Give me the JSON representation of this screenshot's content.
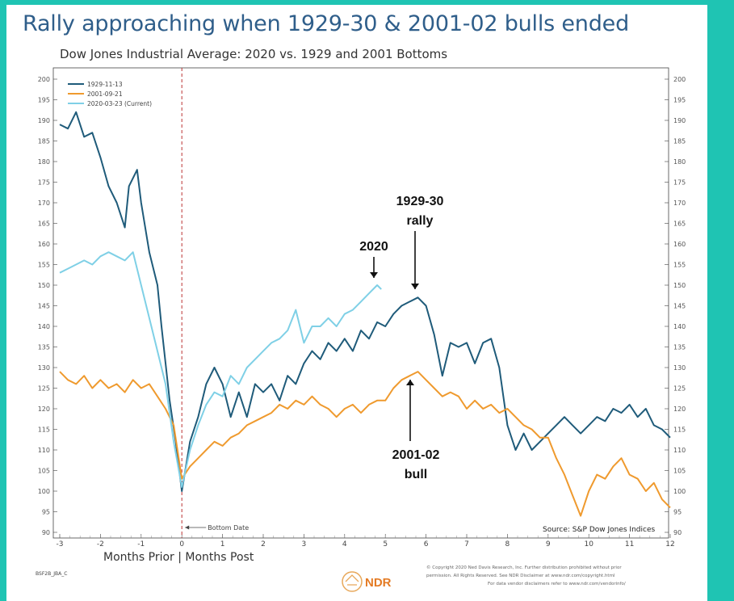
{
  "slide_title": "Rally approaching when 1929-30 & 2001-02 bulls ended",
  "chart_data": {
    "type": "line",
    "title": "Dow Jones Industrial Average: 2020 vs. 1929 and 2001 Bottoms",
    "xlabel": "Months Prior | Months Post",
    "ylabel": "",
    "xlim": [
      -3,
      12
    ],
    "ylim": [
      90,
      200
    ],
    "x_ticks": [
      "-3",
      "-2",
      "-1",
      "0",
      "1",
      "2",
      "3",
      "4",
      "5",
      "6",
      "7",
      "8",
      "9",
      "10",
      "11",
      "12"
    ],
    "y_ticks": [
      "90",
      "95",
      "100",
      "105",
      "110",
      "115",
      "120",
      "125",
      "130",
      "135",
      "140",
      "145",
      "150",
      "155",
      "160",
      "165",
      "170",
      "175",
      "180",
      "185",
      "190",
      "195",
      "200"
    ],
    "grid": false,
    "legend_position": "top-left",
    "vline": {
      "x": 0,
      "label": "Bottom Date"
    },
    "colors": {
      "s1929": "#1f5b7a",
      "s2001": "#ef9a2e",
      "s2020": "#7fd0e6"
    },
    "series": [
      {
        "name": "1929-11-13",
        "color": "#1f5b7a",
        "points": [
          [
            -3,
            189
          ],
          [
            -2.8,
            188
          ],
          [
            -2.6,
            192
          ],
          [
            -2.4,
            186
          ],
          [
            -2.2,
            187
          ],
          [
            -2,
            181
          ],
          [
            -1.8,
            174
          ],
          [
            -1.6,
            170
          ],
          [
            -1.4,
            164
          ],
          [
            -1.3,
            174
          ],
          [
            -1.1,
            178
          ],
          [
            -1,
            170
          ],
          [
            -0.8,
            158
          ],
          [
            -0.6,
            150
          ],
          [
            -0.5,
            140
          ],
          [
            -0.3,
            122
          ],
          [
            -0.15,
            112
          ],
          [
            0,
            100
          ],
          [
            0.2,
            112
          ],
          [
            0.4,
            118
          ],
          [
            0.6,
            126
          ],
          [
            0.8,
            130
          ],
          [
            1,
            126
          ],
          [
            1.2,
            118
          ],
          [
            1.4,
            124
          ],
          [
            1.6,
            118
          ],
          [
            1.8,
            126
          ],
          [
            2,
            124
          ],
          [
            2.2,
            126
          ],
          [
            2.4,
            122
          ],
          [
            2.6,
            128
          ],
          [
            2.8,
            126
          ],
          [
            3,
            131
          ],
          [
            3.2,
            134
          ],
          [
            3.4,
            132
          ],
          [
            3.6,
            136
          ],
          [
            3.8,
            134
          ],
          [
            4,
            137
          ],
          [
            4.2,
            134
          ],
          [
            4.4,
            139
          ],
          [
            4.6,
            137
          ],
          [
            4.8,
            141
          ],
          [
            5,
            140
          ],
          [
            5.2,
            143
          ],
          [
            5.4,
            145
          ],
          [
            5.6,
            146
          ],
          [
            5.8,
            147
          ],
          [
            6,
            145
          ],
          [
            6.2,
            138
          ],
          [
            6.4,
            128
          ],
          [
            6.6,
            136
          ],
          [
            6.8,
            135
          ],
          [
            7,
            136
          ],
          [
            7.2,
            131
          ],
          [
            7.4,
            136
          ],
          [
            7.6,
            137
          ],
          [
            7.8,
            130
          ],
          [
            8,
            116
          ],
          [
            8.2,
            110
          ],
          [
            8.4,
            114
          ],
          [
            8.6,
            110
          ],
          [
            8.8,
            112
          ],
          [
            9,
            114
          ],
          [
            9.2,
            116
          ],
          [
            9.4,
            118
          ],
          [
            9.6,
            116
          ],
          [
            9.8,
            114
          ],
          [
            10,
            116
          ],
          [
            10.2,
            118
          ],
          [
            10.4,
            117
          ],
          [
            10.6,
            120
          ],
          [
            10.8,
            119
          ],
          [
            11,
            121
          ],
          [
            11.2,
            118
          ],
          [
            11.4,
            120
          ],
          [
            11.6,
            116
          ],
          [
            11.8,
            115
          ],
          [
            12,
            113
          ]
        ]
      },
      {
        "name": "2001-09-21",
        "color": "#ef9a2e",
        "points": [
          [
            -3,
            129
          ],
          [
            -2.8,
            127
          ],
          [
            -2.6,
            126
          ],
          [
            -2.4,
            128
          ],
          [
            -2.2,
            125
          ],
          [
            -2,
            127
          ],
          [
            -1.8,
            125
          ],
          [
            -1.6,
            126
          ],
          [
            -1.4,
            124
          ],
          [
            -1.2,
            127
          ],
          [
            -1,
            125
          ],
          [
            -0.8,
            126
          ],
          [
            -0.6,
            123
          ],
          [
            -0.4,
            120
          ],
          [
            -0.2,
            116
          ],
          [
            0,
            103
          ],
          [
            0.2,
            106
          ],
          [
            0.4,
            108
          ],
          [
            0.6,
            110
          ],
          [
            0.8,
            112
          ],
          [
            1,
            111
          ],
          [
            1.2,
            113
          ],
          [
            1.4,
            114
          ],
          [
            1.6,
            116
          ],
          [
            1.8,
            117
          ],
          [
            2,
            118
          ],
          [
            2.2,
            119
          ],
          [
            2.4,
            121
          ],
          [
            2.6,
            120
          ],
          [
            2.8,
            122
          ],
          [
            3,
            121
          ],
          [
            3.2,
            123
          ],
          [
            3.4,
            121
          ],
          [
            3.6,
            120
          ],
          [
            3.8,
            118
          ],
          [
            4,
            120
          ],
          [
            4.2,
            121
          ],
          [
            4.4,
            119
          ],
          [
            4.6,
            121
          ],
          [
            4.8,
            122
          ],
          [
            5,
            122
          ],
          [
            5.2,
            125
          ],
          [
            5.4,
            127
          ],
          [
            5.6,
            128
          ],
          [
            5.8,
            129
          ],
          [
            6,
            127
          ],
          [
            6.2,
            125
          ],
          [
            6.4,
            123
          ],
          [
            6.6,
            124
          ],
          [
            6.8,
            123
          ],
          [
            7,
            120
          ],
          [
            7.2,
            122
          ],
          [
            7.4,
            120
          ],
          [
            7.6,
            121
          ],
          [
            7.8,
            119
          ],
          [
            8,
            120
          ],
          [
            8.2,
            118
          ],
          [
            8.4,
            116
          ],
          [
            8.6,
            115
          ],
          [
            8.8,
            113
          ],
          [
            9,
            113
          ],
          [
            9.2,
            108
          ],
          [
            9.4,
            104
          ],
          [
            9.6,
            99
          ],
          [
            9.8,
            94
          ],
          [
            10,
            100
          ],
          [
            10.2,
            104
          ],
          [
            10.4,
            103
          ],
          [
            10.6,
            106
          ],
          [
            10.8,
            108
          ],
          [
            11,
            104
          ],
          [
            11.2,
            103
          ],
          [
            11.4,
            100
          ],
          [
            11.6,
            102
          ],
          [
            11.8,
            98
          ],
          [
            12,
            96
          ]
        ]
      },
      {
        "name": "2020-03-23 (Current)",
        "color": "#7fd0e6",
        "points": [
          [
            -3,
            153
          ],
          [
            -2.8,
            154
          ],
          [
            -2.6,
            155
          ],
          [
            -2.4,
            156
          ],
          [
            -2.2,
            155
          ],
          [
            -2,
            157
          ],
          [
            -1.8,
            158
          ],
          [
            -1.6,
            157
          ],
          [
            -1.4,
            156
          ],
          [
            -1.2,
            158
          ],
          [
            -1,
            150
          ],
          [
            -0.8,
            142
          ],
          [
            -0.6,
            134
          ],
          [
            -0.4,
            126
          ],
          [
            -0.2,
            112
          ],
          [
            0,
            101
          ],
          [
            0.2,
            110
          ],
          [
            0.4,
            116
          ],
          [
            0.6,
            121
          ],
          [
            0.8,
            124
          ],
          [
            1,
            123
          ],
          [
            1.2,
            128
          ],
          [
            1.4,
            126
          ],
          [
            1.6,
            130
          ],
          [
            1.8,
            132
          ],
          [
            2,
            134
          ],
          [
            2.2,
            136
          ],
          [
            2.4,
            137
          ],
          [
            2.6,
            139
          ],
          [
            2.8,
            144
          ],
          [
            3,
            136
          ],
          [
            3.2,
            140
          ],
          [
            3.4,
            140
          ],
          [
            3.6,
            142
          ],
          [
            3.8,
            140
          ],
          [
            4,
            143
          ],
          [
            4.2,
            144
          ],
          [
            4.4,
            146
          ],
          [
            4.6,
            148
          ],
          [
            4.8,
            150
          ],
          [
            4.9,
            149
          ]
        ]
      }
    ],
    "annotations": [
      {
        "text": "2020",
        "x": 4.75,
        "y": 150
      },
      {
        "text": "1929-30 rally",
        "x": 5.8,
        "y": 147
      },
      {
        "text": "2001-02 bull",
        "x": 5.65,
        "y": 129
      }
    ],
    "source": "Source: S&P Dow Jones Indices"
  },
  "footer": {
    "code": "BSF2B_JBA_C",
    "brand": "NDR",
    "copyright_1": "© Copyright 2020 Ned Davis Research, Inc. Further distribution prohibited without prior",
    "copyright_2": "permission. All Rights Reserved. See NDR Disclaimer at www.ndr.com/copyright.html",
    "copyright_3": "For data vendor disclaimers refer to www.ndr.com/vendorinfo/"
  }
}
